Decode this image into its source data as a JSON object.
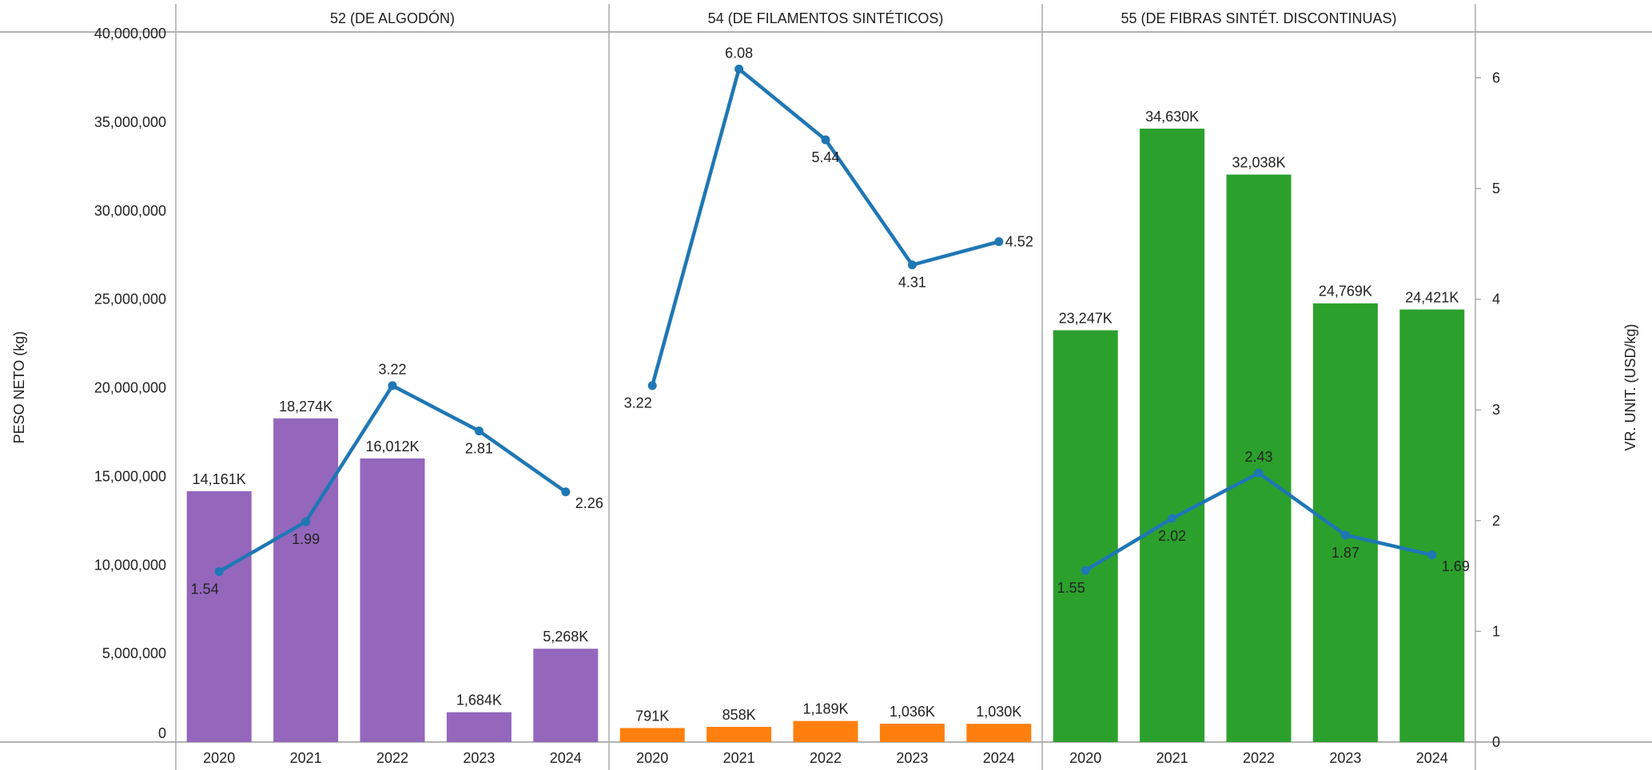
{
  "chart_data": {
    "type": "bar",
    "left_axis_title": "PESO NETO (kg)",
    "right_axis_title": "VR. UNIT. (USD/kg)",
    "left_ylim": [
      0,
      40000000
    ],
    "left_ticks": [
      "0",
      "5,000,000",
      "10,000,000",
      "15,000,000",
      "20,000,000",
      "25,000,000",
      "30,000,000",
      "35,000,000",
      "40,000,000"
    ],
    "right_ylim": [
      0,
      6.4
    ],
    "right_ticks": [
      "0",
      "1",
      "2",
      "3",
      "4",
      "5",
      "6"
    ],
    "categories": [
      "2020",
      "2021",
      "2022",
      "2023",
      "2024"
    ],
    "grid": false,
    "line_color": "#1f77b4",
    "panels": [
      {
        "title": "52 (DE ALGODÓN)",
        "bar_color": "#9467bd",
        "bar_values": [
          14161000,
          18274000,
          16012000,
          1684000,
          5268000
        ],
        "bar_labels": [
          "14,161K",
          "18,274K",
          "16,012K",
          "1,684K",
          "5,268K"
        ],
        "line_values": [
          1.54,
          1.99,
          3.22,
          2.81,
          2.26
        ],
        "line_labels": [
          "1.54",
          "1.99",
          "3.22",
          "2.81",
          "2.26"
        ]
      },
      {
        "title": "54 (DE FILAMENTOS SINTÉTICOS)",
        "bar_color": "#ff7f0e",
        "bar_values": [
          791000,
          858000,
          1189000,
          1036000,
          1030000
        ],
        "bar_labels": [
          "791K",
          "858K",
          "1,189K",
          "1,036K",
          "1,030K"
        ],
        "line_values": [
          3.22,
          6.08,
          5.44,
          4.31,
          4.52
        ],
        "line_labels": [
          "3.22",
          "6.08",
          "5.44",
          "4.31",
          "4.52"
        ]
      },
      {
        "title": "55 (DE FIBRAS SINTÉT.  DISCONTINUAS)",
        "bar_color": "#2ca02c",
        "bar_values": [
          23247000,
          34630000,
          32038000,
          24769000,
          24421000
        ],
        "bar_labels": [
          "23,247K",
          "34,630K",
          "32,038K",
          "24,769K",
          "24,421K"
        ],
        "line_values": [
          1.55,
          2.02,
          2.43,
          1.87,
          1.69
        ],
        "line_labels": [
          "1.55",
          "2.02",
          "2.43",
          "1.87",
          "1.69"
        ]
      }
    ]
  }
}
